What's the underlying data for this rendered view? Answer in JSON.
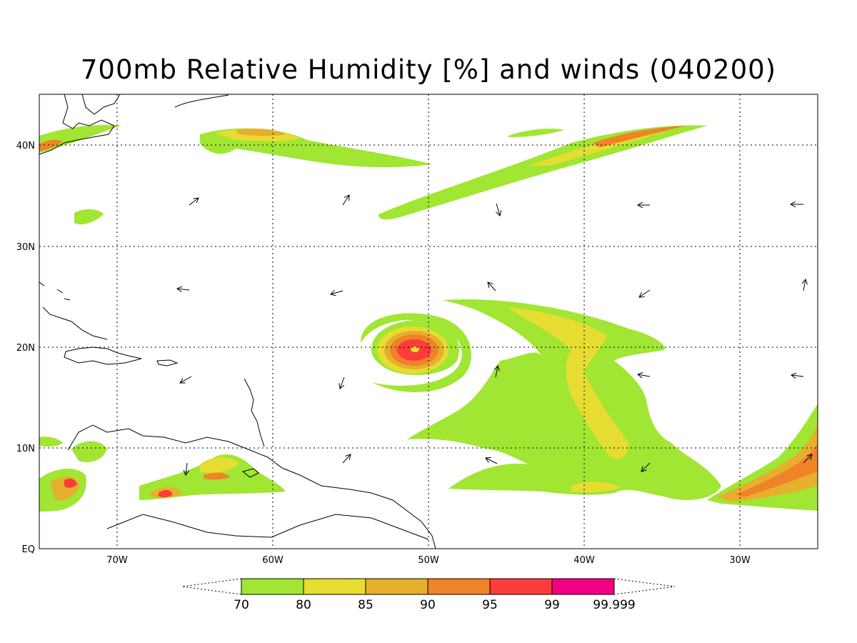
{
  "title": "700mb Relative Humidity [%] and winds (040200)",
  "lat_labels": [
    {
      "lat": 40,
      "text": "40N"
    },
    {
      "lat": 30,
      "text": "30N"
    },
    {
      "lat": 20,
      "text": "20N"
    },
    {
      "lat": 10,
      "text": "10N"
    },
    {
      "lat": 0,
      "text": "EQ"
    }
  ],
  "lon_labels": [
    {
      "lon": -70,
      "text": "70W"
    },
    {
      "lon": -60,
      "text": "60W"
    },
    {
      "lon": -50,
      "text": "50W"
    },
    {
      "lon": -40,
      "text": "40W"
    },
    {
      "lon": -30,
      "text": "30W"
    }
  ],
  "extent": {
    "lon_min": -75,
    "lon_max": -25,
    "lat_min": 0,
    "lat_max": 45
  },
  "colorbar": {
    "labels": [
      "70",
      "80",
      "85",
      "90",
      "95",
      "99",
      "99.999"
    ],
    "colors": [
      "#a0e632",
      "#e6dc32",
      "#e6af2d",
      "#f08228",
      "#fa3c3c",
      "#f00082"
    ]
  },
  "fill_colors": {
    "c70": "#a0e632",
    "c80": "#e6dc32",
    "c85": "#e6af2d",
    "c90": "#f08228",
    "c95": "#fa3c3c"
  }
}
